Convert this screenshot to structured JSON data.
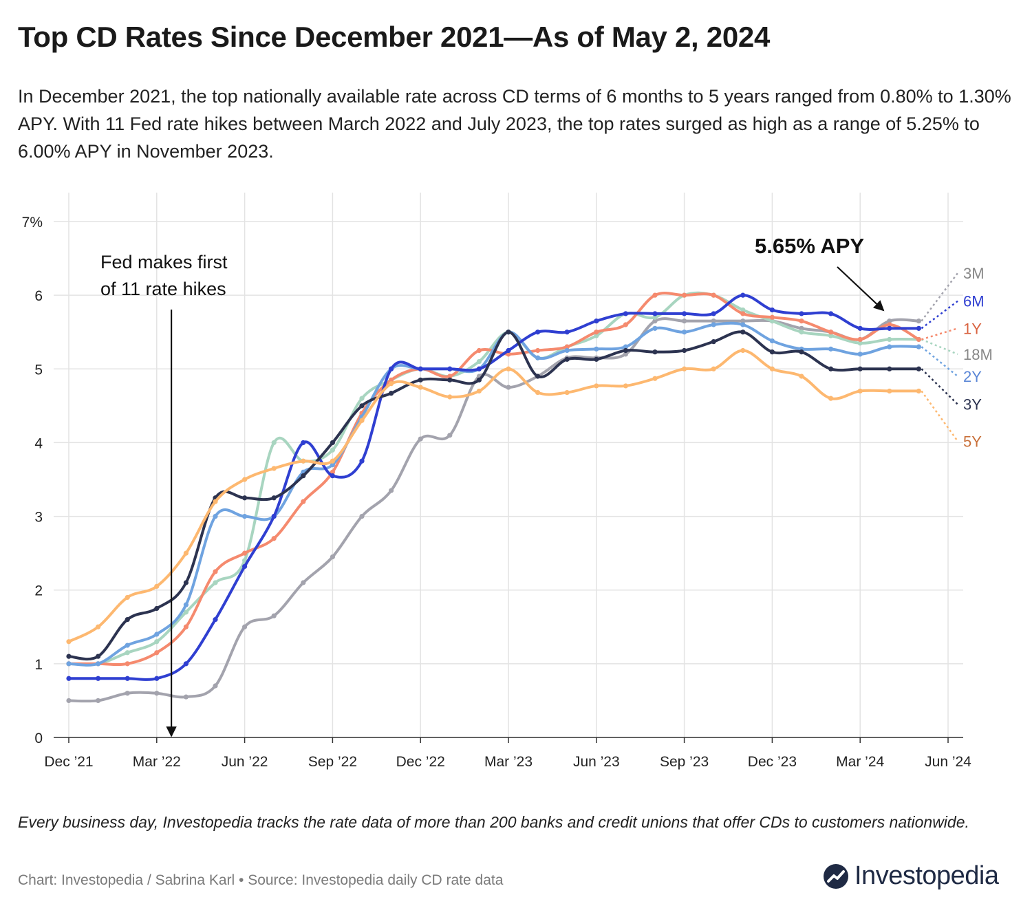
{
  "title": "Top CD Rates Since December 2021—As of May 2, 2024",
  "subtitle": "In December 2021, the top nationally available rate across CD terms of 6 months to 5 years ranged from 0.80% to 1.30% APY. With 11 Fed rate hikes between March 2022 and July 2023, the top rates surged as high as a range of 5.25% to 6.00% APY in November 2023.",
  "footnote": "Every business day, Investopedia tracks the rate data of more than 200 banks and credit unions that offer CDs to customers nationwide.",
  "credit": "Chart: Investopedia / Sabrina Karl • Source: Investopedia daily CD rate data",
  "brand": {
    "name": "Investopedia",
    "icon": "investopedia-logo-icon"
  },
  "chart_data": {
    "type": "line",
    "title": "Top CD Rates Since December 2021—As of May 2, 2024",
    "xlabel": "",
    "ylabel": "",
    "ylim": [
      0,
      7
    ],
    "xlim": [
      0,
      30.3
    ],
    "grid": true,
    "x_unit": "months since Dec 2021",
    "x_ticks": [
      {
        "x": 0,
        "label": "Dec ’21"
      },
      {
        "x": 3,
        "label": "Mar ’22"
      },
      {
        "x": 6,
        "label": "Jun ’22"
      },
      {
        "x": 9,
        "label": "Sep ’22"
      },
      {
        "x": 12,
        "label": "Dec ’22"
      },
      {
        "x": 15,
        "label": "Mar ’23"
      },
      {
        "x": 18,
        "label": "Jun ’23"
      },
      {
        "x": 21,
        "label": "Sep ’23"
      },
      {
        "x": 24,
        "label": "Dec ’23"
      },
      {
        "x": 27,
        "label": "Mar ’24"
      },
      {
        "x": 30,
        "label": "Jun ’24"
      }
    ],
    "y_ticks": [
      {
        "y": 0,
        "label": "0"
      },
      {
        "y": 1,
        "label": "1"
      },
      {
        "y": 2,
        "label": "2"
      },
      {
        "y": 3,
        "label": "3"
      },
      {
        "y": 4,
        "label": "4"
      },
      {
        "y": 5,
        "label": "5"
      },
      {
        "y": 6,
        "label": "6"
      },
      {
        "y": 7,
        "label": "7%"
      }
    ],
    "x": [
      0,
      1,
      2,
      3,
      4,
      5,
      6,
      7,
      8,
      9,
      10,
      11,
      12,
      13,
      14,
      15,
      16,
      17,
      18,
      19,
      20,
      21,
      22,
      23,
      24,
      25,
      26,
      27,
      28,
      29
    ],
    "series": [
      {
        "name": "3M",
        "color": "#a3a3ad",
        "label_color": "#888888",
        "end": 5.65,
        "values": [
          0.5,
          0.5,
          0.6,
          0.6,
          0.55,
          0.7,
          1.5,
          1.65,
          2.1,
          2.45,
          3.0,
          3.35,
          4.05,
          4.1,
          4.9,
          4.75,
          4.9,
          5.15,
          5.15,
          5.2,
          5.65,
          5.65,
          5.65,
          5.65,
          5.65,
          5.55,
          5.5,
          5.4,
          5.65,
          5.65
        ]
      },
      {
        "name": "18M",
        "color": "#a8d5c0",
        "label_color": "#888888",
        "end": 5.4,
        "values": [
          1.0,
          1.0,
          1.15,
          1.3,
          1.7,
          2.1,
          2.4,
          4.0,
          3.75,
          3.9,
          4.6,
          4.85,
          5.0,
          4.9,
          5.1,
          5.5,
          5.15,
          5.3,
          5.45,
          5.75,
          5.7,
          6.0,
          6.0,
          5.8,
          5.65,
          5.5,
          5.45,
          5.35,
          5.4,
          5.4
        ]
      },
      {
        "name": "1Y",
        "color": "#f58a6e",
        "label_color": "#d9623f",
        "end": 5.4,
        "values": [
          1.0,
          1.0,
          1.0,
          1.15,
          1.5,
          2.25,
          2.5,
          2.7,
          3.2,
          3.6,
          4.4,
          4.85,
          5.0,
          4.9,
          5.25,
          5.2,
          5.25,
          5.3,
          5.5,
          5.6,
          6.0,
          6.0,
          6.0,
          5.75,
          5.7,
          5.65,
          5.5,
          5.4,
          5.6,
          5.4
        ]
      },
      {
        "name": "2Y",
        "color": "#6fa3e0",
        "label_color": "#5a86d6",
        "end": 5.3,
        "values": [
          1.0,
          1.0,
          1.25,
          1.4,
          1.8,
          3.0,
          3.0,
          3.0,
          3.6,
          3.7,
          4.35,
          5.0,
          5.0,
          5.0,
          5.0,
          5.5,
          5.15,
          5.25,
          5.27,
          5.3,
          5.55,
          5.5,
          5.6,
          5.6,
          5.38,
          5.27,
          5.27,
          5.2,
          5.3,
          5.3
        ]
      },
      {
        "name": "6M",
        "color": "#2f3fd1",
        "label_color": "#2f3fd1",
        "end": 5.55,
        "values": [
          0.8,
          0.8,
          0.8,
          0.8,
          1.0,
          1.6,
          2.32,
          3.0,
          4.0,
          3.55,
          3.75,
          5.0,
          5.0,
          5.0,
          5.0,
          5.25,
          5.5,
          5.5,
          5.65,
          5.75,
          5.75,
          5.75,
          5.75,
          6.0,
          5.8,
          5.75,
          5.75,
          5.55,
          5.55,
          5.55
        ]
      },
      {
        "name": "3Y",
        "color": "#2c3350",
        "label_color": "#2c3350",
        "end": 5.0,
        "values": [
          1.1,
          1.1,
          1.6,
          1.75,
          2.1,
          3.25,
          3.25,
          3.25,
          3.55,
          4.0,
          4.5,
          4.67,
          4.85,
          4.85,
          4.85,
          5.5,
          4.9,
          5.13,
          5.13,
          5.25,
          5.23,
          5.25,
          5.37,
          5.5,
          5.23,
          5.23,
          5.0,
          5.0,
          5.0,
          5.0
        ]
      },
      {
        "name": "5Y",
        "color": "#fdb870",
        "label_color": "#c9703a",
        "end": 4.7,
        "values": [
          1.3,
          1.5,
          1.9,
          2.05,
          2.5,
          3.2,
          3.5,
          3.65,
          3.75,
          3.75,
          4.3,
          4.8,
          4.75,
          4.62,
          4.7,
          5.0,
          4.68,
          4.68,
          4.77,
          4.77,
          4.87,
          5.0,
          5.0,
          5.25,
          5.0,
          4.9,
          4.6,
          4.7,
          4.7,
          4.7
        ]
      }
    ],
    "annotations": [
      {
        "text_lines": [
          "Fed makes first",
          "of 11 rate hikes"
        ],
        "x": 3.5,
        "arrow_from_y": 5.9,
        "arrow_to_y": 0.0
      },
      {
        "text": "5.65% APY",
        "x": 25.0,
        "y": 6.35,
        "arrow_to_x": 27.8,
        "arrow_to_y": 5.7
      }
    ]
  }
}
